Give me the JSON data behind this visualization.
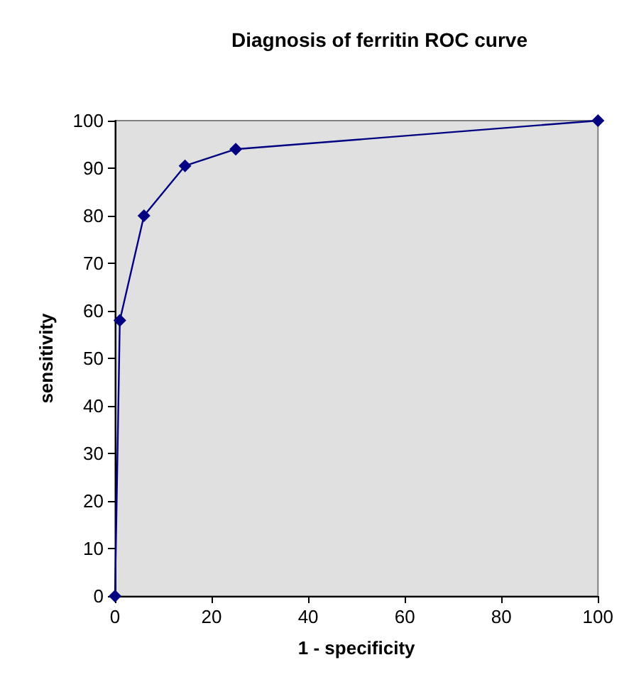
{
  "chart_data": {
    "type": "line",
    "title": "Diagnosis of ferritin ROC curve",
    "xlabel": "1 - specificity",
    "ylabel": "sensitivity",
    "x": [
      0,
      1,
      6,
      14.5,
      25,
      100
    ],
    "series": [
      {
        "color": "#000080",
        "values": [
          0,
          58,
          80,
          90.5,
          94,
          100
        ]
      }
    ],
    "xlim": [
      0,
      100
    ],
    "xticks": [
      0,
      20,
      40,
      60,
      80,
      100
    ],
    "ylim": [
      0,
      100
    ],
    "yticks": [
      0,
      10,
      20,
      30,
      40,
      50,
      60,
      70,
      80,
      90,
      100
    ],
    "grid": false,
    "marker": "diamond",
    "line_style": "solid"
  }
}
